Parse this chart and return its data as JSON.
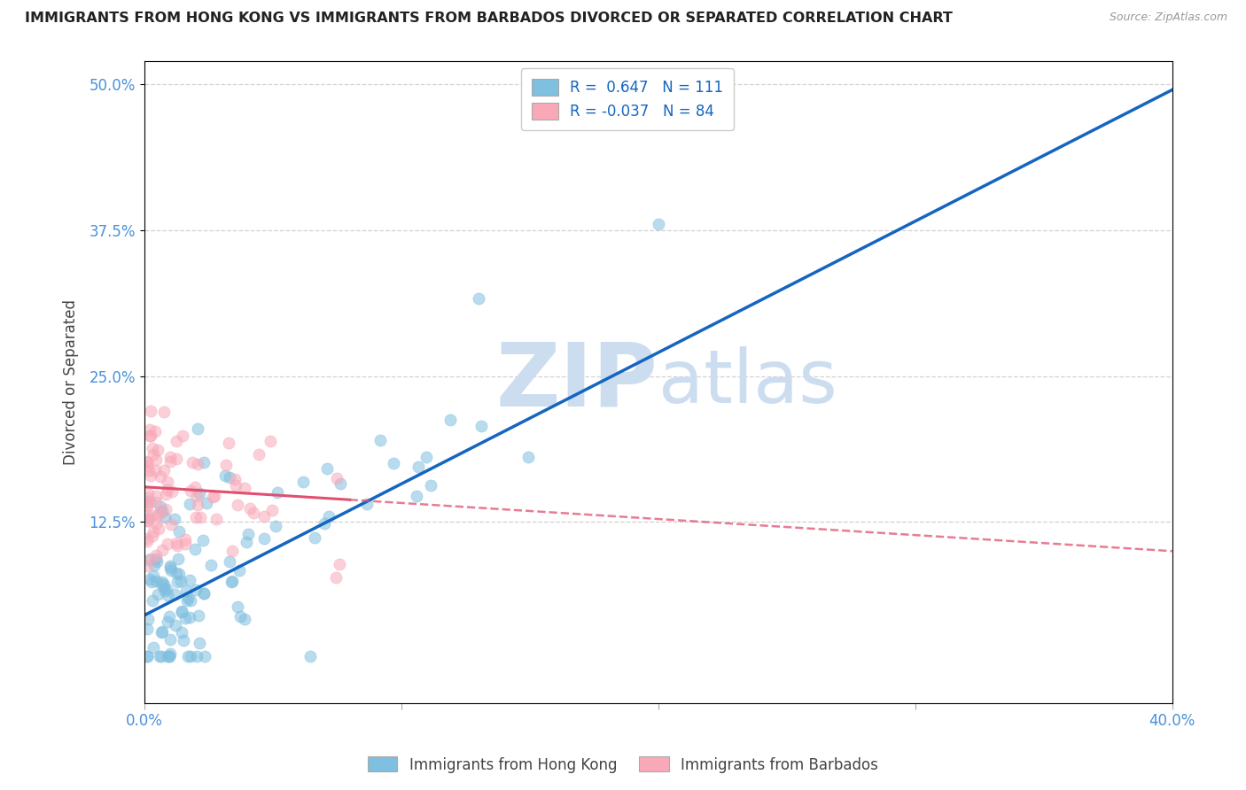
{
  "title": "IMMIGRANTS FROM HONG KONG VS IMMIGRANTS FROM BARBADOS DIVORCED OR SEPARATED CORRELATION CHART",
  "source": "Source: ZipAtlas.com",
  "legend_hk": "Immigrants from Hong Kong",
  "legend_bb": "Immigrants from Barbados",
  "r_hk": 0.647,
  "n_hk": 111,
  "r_bb": -0.037,
  "n_bb": 84,
  "hk_color": "#7fbfdf",
  "bb_color": "#f9a8b8",
  "hk_line_color": "#1565c0",
  "bb_line_color": "#e05070",
  "background_color": "#ffffff",
  "grid_color": "#cccccc",
  "x_min": 0.0,
  "x_max": 0.4,
  "y_min": -0.03,
  "y_max": 0.52,
  "watermark_zip": "ZIP",
  "watermark_atlas": "atlas",
  "watermark_color": "#ccddf0"
}
